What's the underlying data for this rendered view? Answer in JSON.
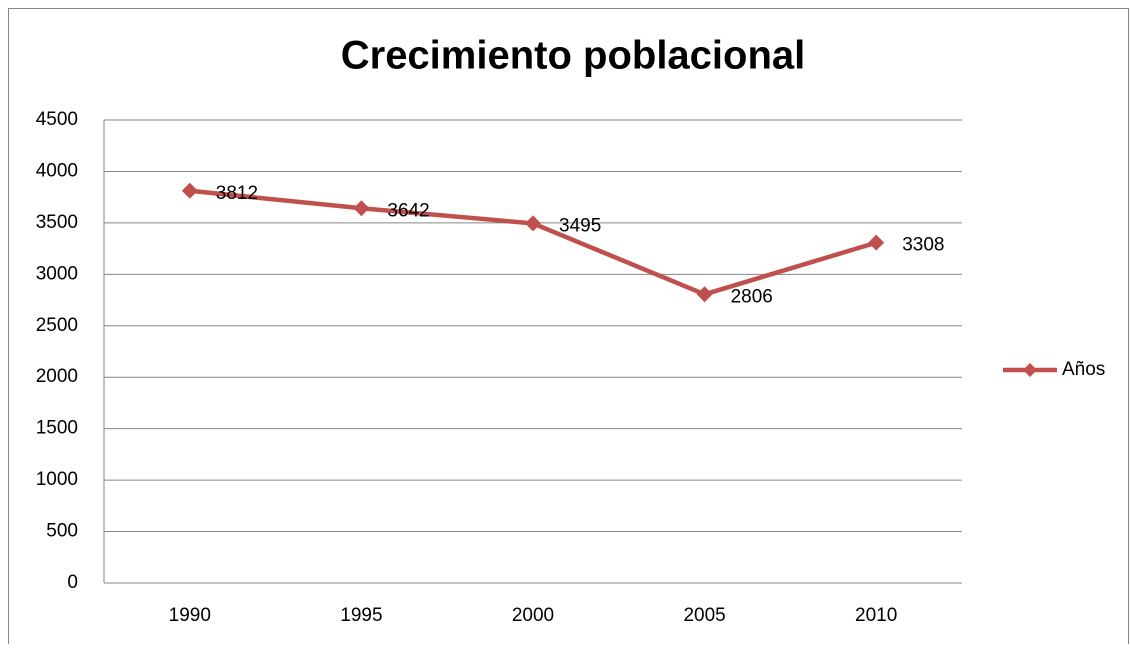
{
  "chart_data": {
    "type": "line",
    "title": "Crecimiento poblacional",
    "categories": [
      "1990",
      "1995",
      "2000",
      "2005",
      "2010"
    ],
    "series": [
      {
        "name": "Años",
        "color": "#c0504d",
        "values": [
          3812,
          3642,
          3495,
          2806,
          3308
        ]
      }
    ],
    "ylim": [
      0,
      4500
    ],
    "yticks": [
      0,
      500,
      1000,
      1500,
      2000,
      2500,
      3000,
      3500,
      4000,
      4500
    ],
    "grid": true,
    "legend": "right",
    "data_labels": true
  }
}
